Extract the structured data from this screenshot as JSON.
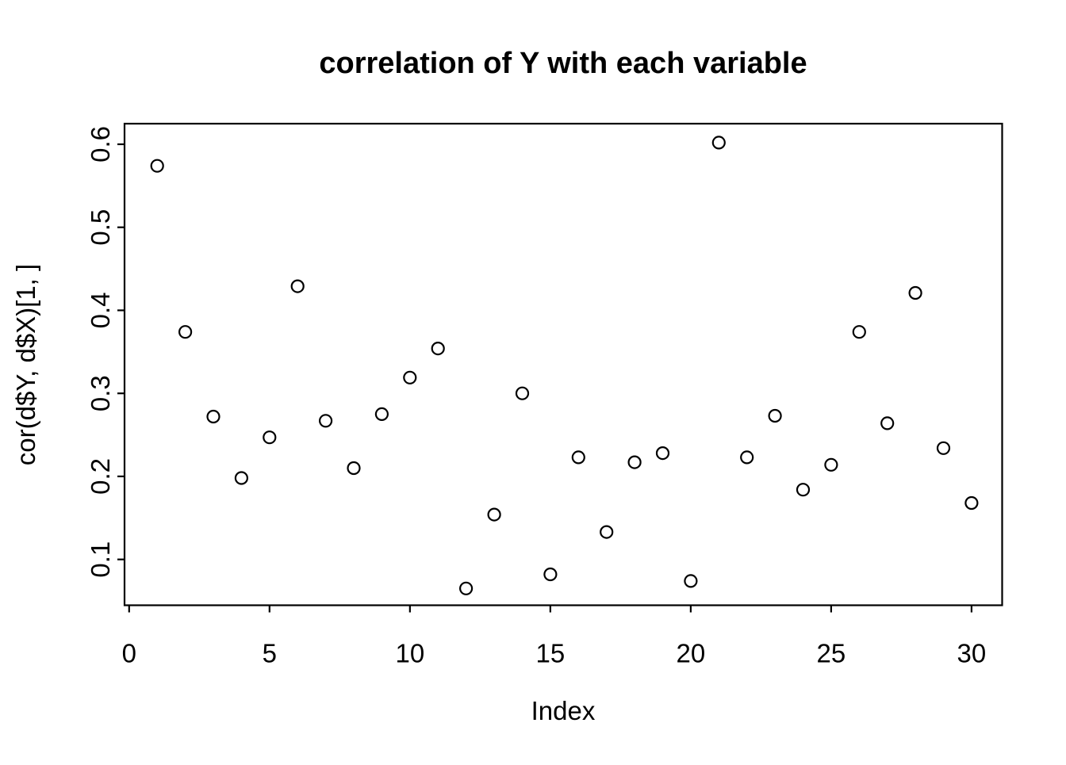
{
  "chart_data": {
    "type": "scatter",
    "title": "correlation of Y with each variable",
    "xlabel": "Index",
    "ylabel": "cor(d$Y, d$X)[1, ]",
    "x": [
      1,
      2,
      3,
      4,
      5,
      6,
      7,
      8,
      9,
      10,
      11,
      12,
      13,
      14,
      15,
      16,
      17,
      18,
      19,
      20,
      21,
      22,
      23,
      24,
      25,
      26,
      27,
      28,
      29,
      30
    ],
    "y": [
      0.574,
      0.374,
      0.272,
      0.198,
      0.247,
      0.429,
      0.267,
      0.21,
      0.275,
      0.319,
      0.354,
      0.065,
      0.154,
      0.3,
      0.082,
      0.223,
      0.133,
      0.217,
      0.228,
      0.074,
      0.602,
      0.223,
      0.273,
      0.184,
      0.214,
      0.374,
      0.264,
      0.421,
      0.234,
      0.168
    ],
    "xticks": [
      {
        "v": 0,
        "label": "0"
      },
      {
        "v": 5,
        "label": "5"
      },
      {
        "v": 10,
        "label": "10"
      },
      {
        "v": 15,
        "label": "15"
      },
      {
        "v": 20,
        "label": "20"
      },
      {
        "v": 25,
        "label": "25"
      },
      {
        "v": 30,
        "label": "30"
      }
    ],
    "yticks": [
      {
        "v": 0.1,
        "label": "0.1"
      },
      {
        "v": 0.2,
        "label": "0.2"
      },
      {
        "v": 0.3,
        "label": "0.3"
      },
      {
        "v": 0.4,
        "label": "0.4"
      },
      {
        "v": 0.5,
        "label": "0.5"
      },
      {
        "v": 0.6,
        "label": "0.6"
      }
    ],
    "xlim": [
      -0.164,
      31.09
    ],
    "ylim": [
      0.0448,
      0.6248
    ],
    "grid": false,
    "legend": null,
    "marker": {
      "shape": "open-circle",
      "radius_px": 7.5,
      "stroke_px": 2.2,
      "color": "#000000"
    },
    "box_color": "#000000",
    "background": "#ffffff"
  }
}
